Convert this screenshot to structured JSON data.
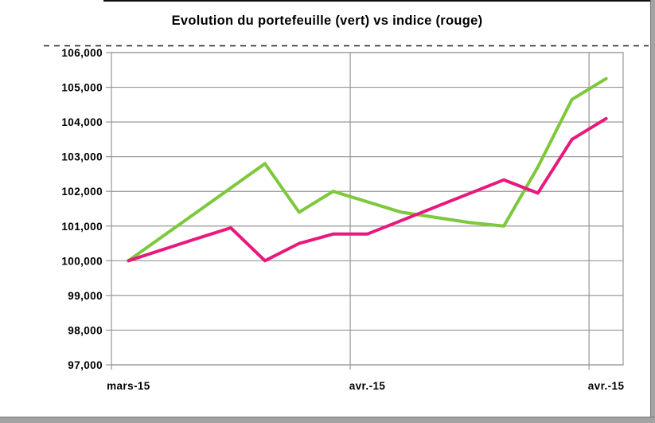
{
  "chart_data": {
    "type": "line",
    "title": "Evolution du portefeuille (vert) vs indice (rouge)",
    "n_points": 15,
    "x_tick_labels": [
      {
        "index": 0,
        "label": "mars-15"
      },
      {
        "index": 7,
        "label": "avr.-15"
      },
      {
        "index": 14,
        "label": "avr.-15"
      }
    ],
    "x_gridline_indices": [
      7,
      14
    ],
    "y_axis": {
      "min": 97000,
      "max": 106000,
      "step": 1000,
      "ticks": [
        {
          "value": 106000,
          "label": "106,000"
        },
        {
          "value": 105000,
          "label": "105,000"
        },
        {
          "value": 104000,
          "label": "104,000"
        },
        {
          "value": 103000,
          "label": "103,000"
        },
        {
          "value": 102000,
          "label": "102,000"
        },
        {
          "value": 101000,
          "label": "101,000"
        },
        {
          "value": 100000,
          "label": "100,000"
        },
        {
          "value": 99000,
          "label": "99,000"
        },
        {
          "value": 98000,
          "label": "98,000"
        },
        {
          "value": 97000,
          "label": "97,000"
        }
      ]
    },
    "series": [
      {
        "id": "portefeuille",
        "name": "portefeuille (vert)",
        "color": "#7DC83C",
        "values": [
          100000,
          100700,
          101400,
          102100,
          102800,
          101400,
          102000,
          101700,
          101400,
          101250,
          101100,
          101000,
          102700,
          104650,
          105250
        ]
      },
      {
        "id": "indice",
        "name": "indice (rouge)",
        "color": "#E8187C",
        "values": [
          100000,
          100320,
          100640,
          100950,
          100000,
          100500,
          100770,
          100770,
          101160,
          101550,
          101940,
          102330,
          101950,
          103500,
          104100
        ]
      }
    ],
    "colors": {
      "grid": "#969696",
      "dashed_line": "#1f1f1f",
      "window_edge": "#a3a3a3"
    },
    "legend_position": "none",
    "grid": true
  }
}
